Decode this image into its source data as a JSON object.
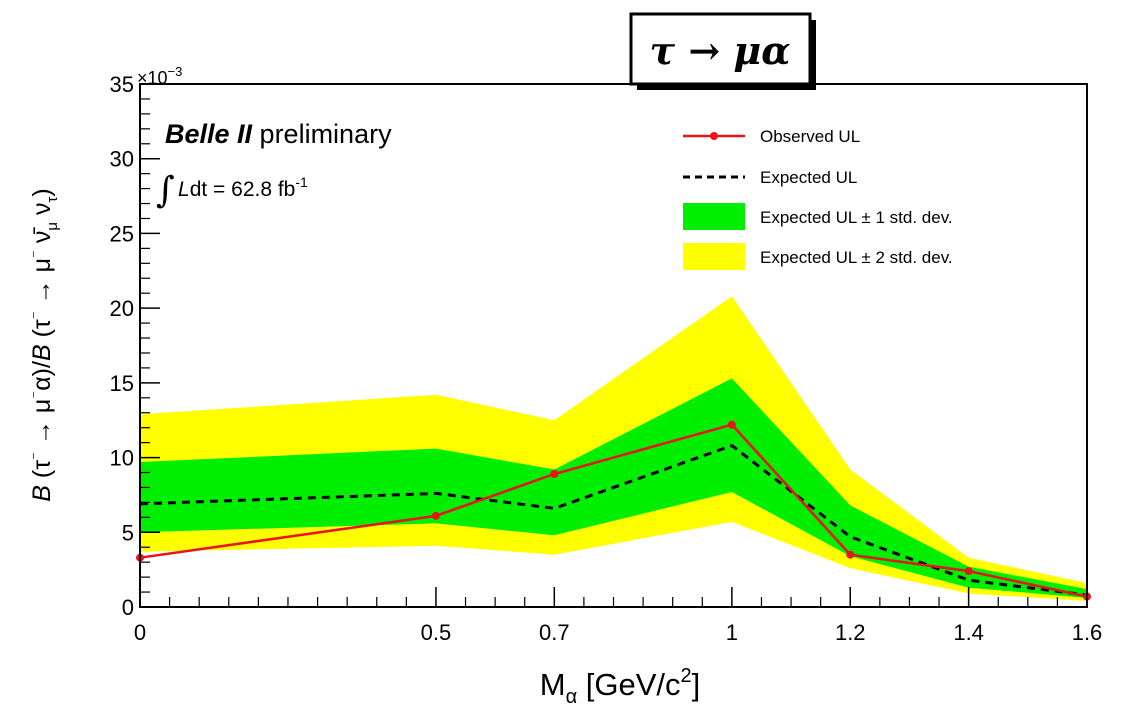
{
  "chart_data": {
    "type": "line",
    "title": "τ → μα",
    "xlabel": {
      "main": "M",
      "sub": "α",
      "unit": " [GeV/c",
      "sup": "2",
      "close": "]"
    },
    "ylabel": {
      "p1": "B",
      "p2": " (τ",
      "p3": "⁻",
      "p4": " → μ",
      "p5": "⁻",
      "p6": "α)/",
      "p7": "B",
      "p8": " (τ",
      "p9": "⁻",
      "p10": " → μ",
      "p11": "⁻",
      "p12": " ν̄",
      "p13": "μ",
      "p14": " ν",
      "p15": "τ",
      "p16": ")"
    },
    "y_multiplier": "×10",
    "y_multiplier_exp": "−3",
    "xlim": [
      0,
      1.6
    ],
    "ylim": [
      0,
      35
    ],
    "x_ticks": [
      0,
      0.5,
      0.7,
      1,
      1.2,
      1.4,
      1.6
    ],
    "x_tick_labels": [
      "0",
      "0.5",
      "0.7",
      "1",
      "1.2",
      "1.4",
      "1.6"
    ],
    "x_minor_ticks": [
      0.05,
      0.1,
      0.15,
      0.2,
      0.25,
      0.3,
      0.35,
      0.4,
      0.45,
      0.55,
      0.6,
      0.65,
      0.75,
      0.8,
      0.85,
      0.9,
      0.95,
      1.05,
      1.1,
      1.15,
      1.25,
      1.3,
      1.35,
      1.45,
      1.5,
      1.55
    ],
    "y_ticks": [
      0,
      5,
      10,
      15,
      20,
      25,
      30,
      35
    ],
    "y_tick_labels": [
      "0",
      "5",
      "10",
      "15",
      "20",
      "25",
      "30",
      "35"
    ],
    "x": [
      0,
      0.5,
      0.7,
      1.0,
      1.2,
      1.4,
      1.6
    ],
    "series": [
      {
        "name": "Observed UL",
        "values": [
          3.3,
          6.1,
          8.9,
          12.2,
          3.5,
          2.4,
          0.7
        ],
        "color": "#e8141c",
        "style": "solid-markers"
      },
      {
        "name": "Expected UL",
        "values": [
          6.9,
          7.6,
          6.6,
          10.8,
          4.7,
          1.8,
          0.8
        ],
        "color": "#000000",
        "style": "dashed"
      },
      {
        "name": "Expected UL ± 1 std. dev.",
        "lower": [
          5.0,
          5.6,
          4.8,
          7.7,
          3.4,
          1.3,
          0.6
        ],
        "upper": [
          9.7,
          10.6,
          9.2,
          15.3,
          6.8,
          2.7,
          1.2
        ],
        "color": "#00ee00",
        "style": "band"
      },
      {
        "name": "Expected UL ± 2 std. dev.",
        "lower": [
          3.7,
          4.1,
          3.5,
          5.7,
          2.6,
          0.9,
          0.4
        ],
        "upper": [
          12.9,
          14.2,
          12.5,
          20.8,
          9.2,
          3.3,
          1.6
        ],
        "color": "#ffff00",
        "style": "band"
      }
    ],
    "legend_placement": "top-right",
    "annotations": {
      "experiment": "Belle II",
      "status": " preliminary",
      "lumi_symbol": "L",
      "lumi_text": "dt = 62.8 fb",
      "lumi_exp": "-1"
    },
    "grid": false
  }
}
